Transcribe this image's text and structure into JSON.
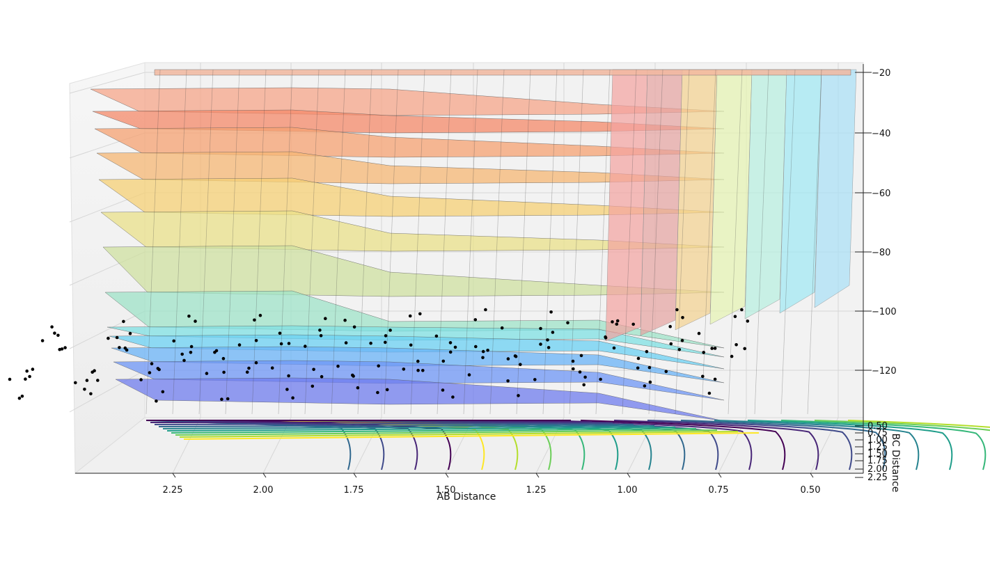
{
  "chart_data": {
    "type": "surface3d",
    "title": "",
    "xlabel": "AB Distance",
    "ylabel": "BC Distance",
    "zlabel": "",
    "x_ticks": [
      "2.25",
      "2.00",
      "1.75",
      "1.50",
      "1.25",
      "1.00",
      "0.75",
      "0.50"
    ],
    "y_ticks": [
      "0.50",
      "0.75",
      "1.00",
      "1.25",
      "1.50",
      "1.75",
      "2.00",
      "2.25"
    ],
    "z_ticks": [
      "−20",
      "−40",
      "−60",
      "−80",
      "−100",
      "−120"
    ],
    "xlim": [
      0.4,
      2.5
    ],
    "ylim": [
      0.4,
      2.3
    ],
    "zlim": [
      -136,
      -18
    ],
    "surface_colormap": "jet",
    "contour_colormap": "viridis",
    "grid": true,
    "trajectory_color": "#000000"
  }
}
